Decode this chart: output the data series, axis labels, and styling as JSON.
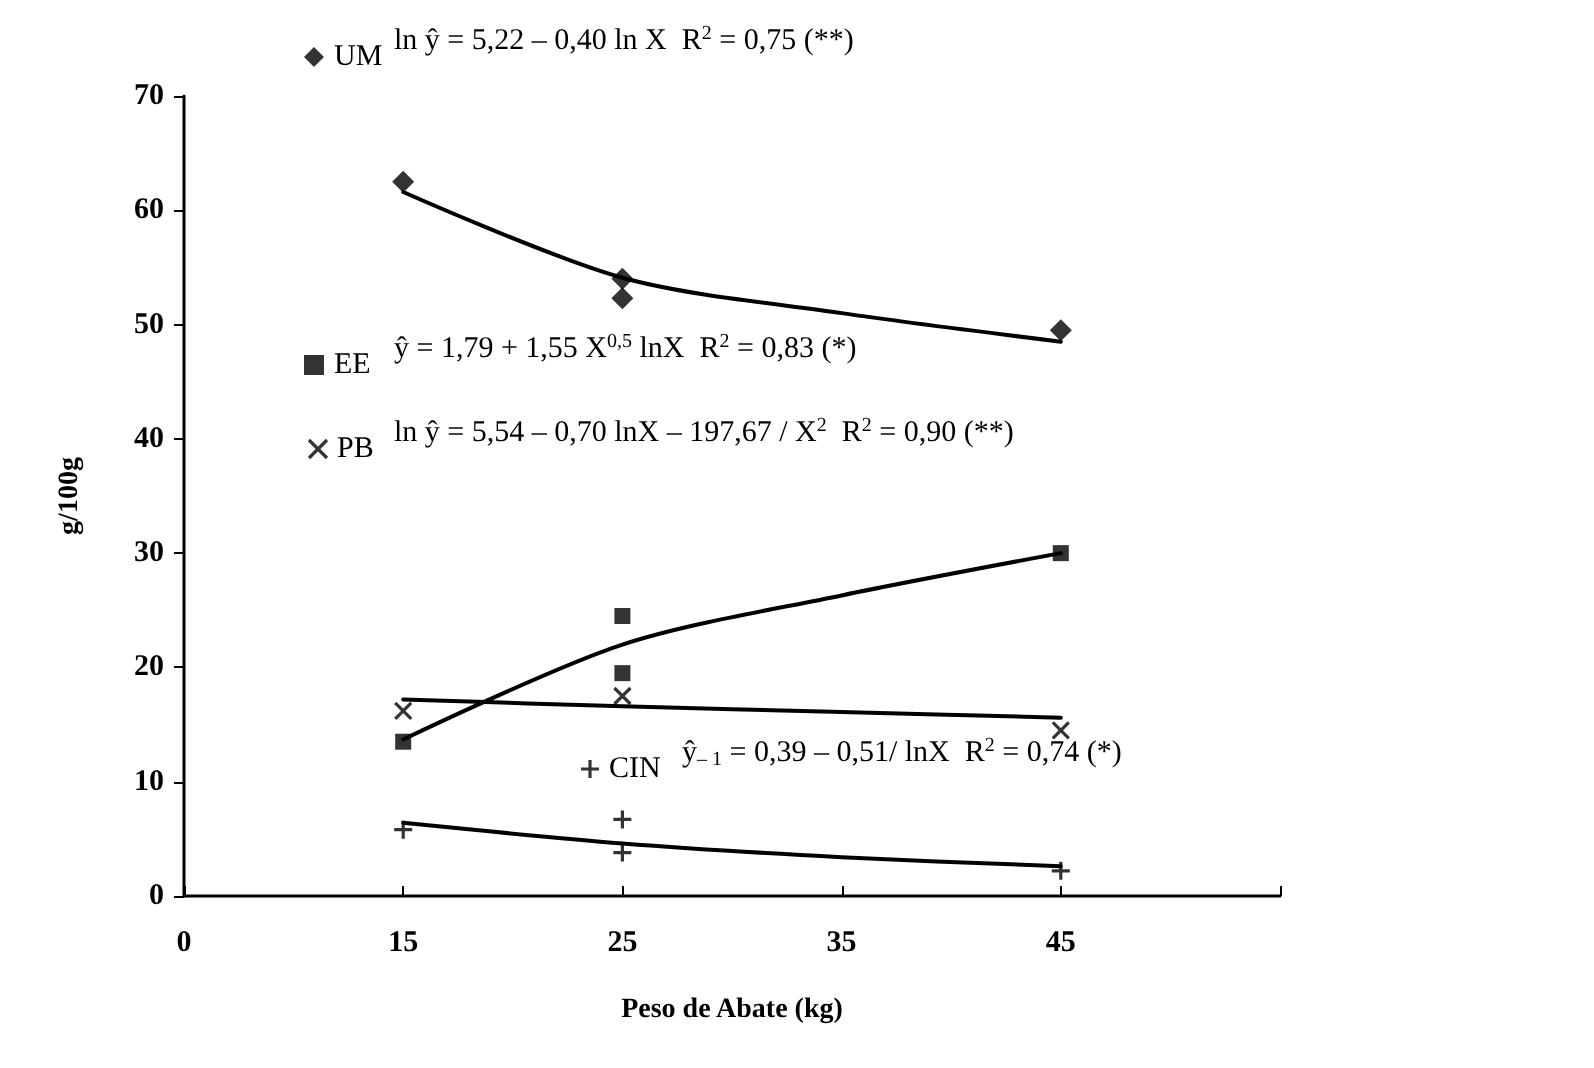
{
  "chart_data": {
    "type": "scatter",
    "xlabel": "Peso de Abate (kg)",
    "ylabel": "g/100g",
    "categories": [
      "0",
      "15",
      "25",
      "35",
      "45",
      null
    ],
    "ylim": [
      0,
      70
    ],
    "yticks": [
      0,
      10,
      20,
      30,
      40,
      50,
      60,
      70
    ],
    "grid": false,
    "legend": "top left",
    "series": [
      {
        "name": "UM",
        "color": "#000000",
        "marker": "diamond",
        "x": [
          "15",
          "25",
          "25",
          "45"
        ],
        "values": [
          62.5,
          54,
          52.3,
          49.5
        ]
      },
      {
        "name": "EE",
        "color": "#000000",
        "marker": "square",
        "x": [
          "15",
          "25",
          "25",
          "45"
        ],
        "values": [
          13.5,
          24.5,
          19.5,
          30
        ]
      },
      {
        "name": "PB",
        "color": "#000000",
        "marker": "cross",
        "x": [
          "15",
          "25",
          "45"
        ],
        "values": [
          16.2,
          17.5,
          14.5
        ]
      },
      {
        "name": "CIN",
        "color": "#000000",
        "marker": "plus",
        "x": [
          "15",
          "25",
          "25",
          "45"
        ],
        "values": [
          5.8,
          6.7,
          3.8,
          2.2
        ]
      },
      {
        "type": "line",
        "color": "#000000",
        "marker": "none",
        "x": [
          "15",
          "25",
          "35",
          "45"
        ],
        "values": [
          61.6,
          54.1,
          51,
          48.5
        ]
      },
      {
        "type": "line",
        "color": "#000000",
        "marker": "none",
        "x": [
          "15",
          "25",
          "35",
          "45"
        ],
        "values": [
          13.7,
          22,
          26.3,
          30
        ]
      },
      {
        "type": "line",
        "color": "#000000",
        "marker": "none",
        "x": [
          "15",
          "25",
          "35",
          "45"
        ],
        "values": [
          17.2,
          16.6,
          16.1,
          15.6
        ]
      },
      {
        "type": "line",
        "color": "#000000",
        "marker": "none",
        "x": [
          "15",
          "25",
          "35",
          "45"
        ],
        "values": [
          6.4,
          4.6,
          3.4,
          2.6
        ]
      }
    ],
    "annotations": [
      "ln ŷ = 5,22 – 0,40 ln X  R$^{2}$ = 0,75 (**)",
      "ŷ = 1,79 + 1,55 X$^{0,5}$ lnX  R$^{2}$ = 0,83 (*)",
      "ln ŷ = 5,54 – 0,70 lnX – 197,67 / X$^{2}$  R$^{2}$ = 0,90 (**)",
      "ŷ$_{– 1}$ = 0,39 – 0,51/ lnX  R$^{2}$ = 0,74 (*)"
    ]
  }
}
